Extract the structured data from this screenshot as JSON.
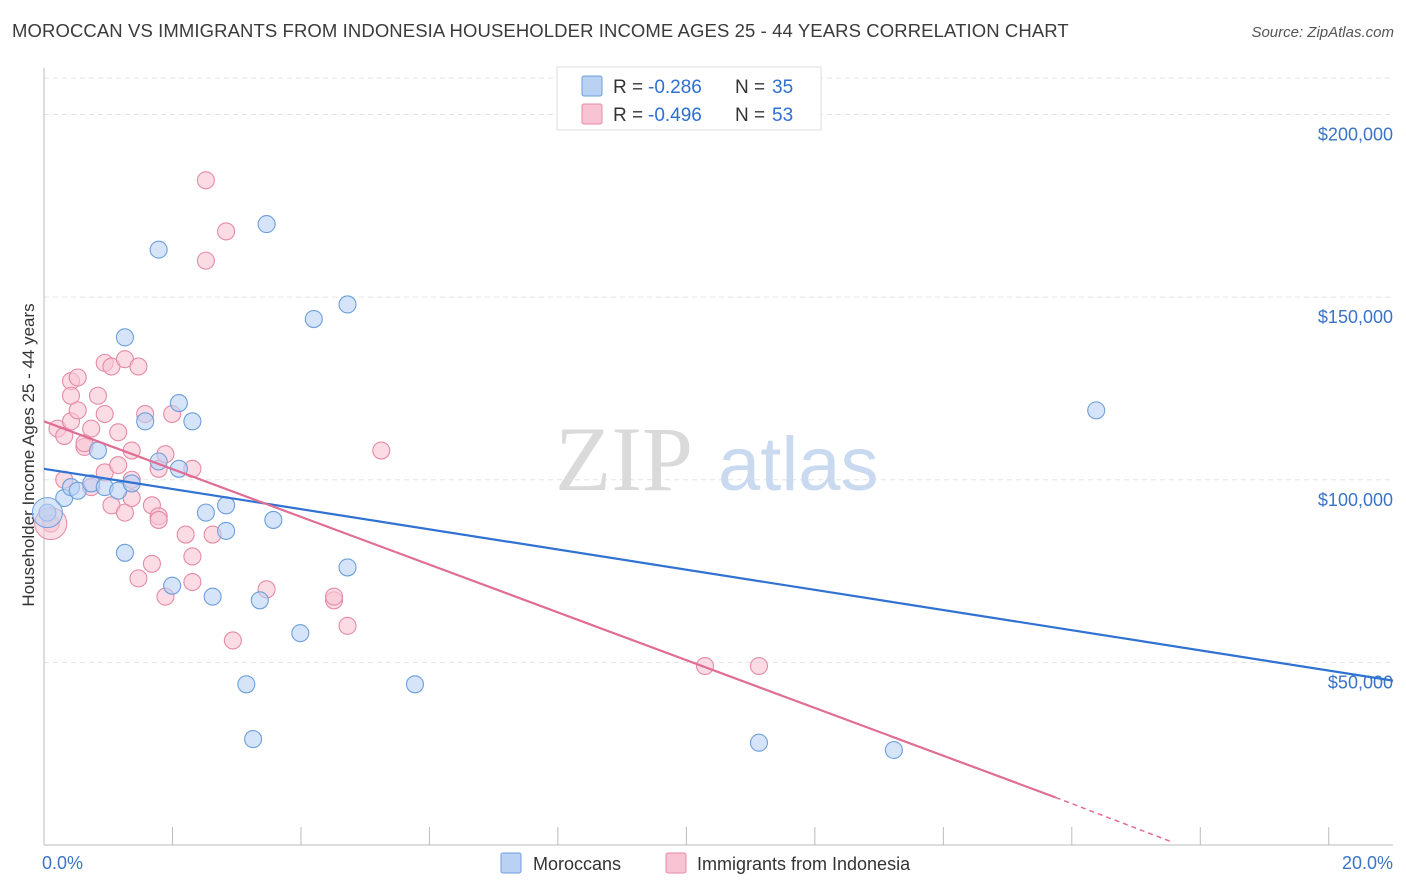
{
  "title": "MOROCCAN VS IMMIGRANTS FROM INDONESIA HOUSEHOLDER INCOME AGES 25 - 44 YEARS CORRELATION CHART",
  "source": "Source: ZipAtlas.com",
  "watermark": {
    "zip": "ZIP",
    "atlas": "atlas"
  },
  "colors": {
    "blue_fill": "#b9d2f4",
    "blue_stroke": "#6d9fdc",
    "blue_line": "#2f72d2",
    "pink_fill": "#f8c4d3",
    "pink_stroke": "#e58aa5",
    "pink_line": "#e06d96",
    "grid": "#e3e3e3",
    "tick_label": "#3b74c6"
  },
  "legend": {
    "rows": [
      {
        "r_label": "R = ",
        "r_value": "-0.286",
        "n_label": "N = ",
        "n_value": "35"
      },
      {
        "r_label": "R = ",
        "r_value": "-0.496",
        "n_label": "N = ",
        "n_value": "53"
      }
    ]
  },
  "bottom_legend": [
    "Moroccans",
    "Immigrants from Indonesia"
  ],
  "chart_data": {
    "type": "scatter",
    "title": "MOROCCAN VS IMMIGRANTS FROM INDONESIA HOUSEHOLDER INCOME AGES 25 - 44 YEARS CORRELATION CHART",
    "xlabel": "",
    "ylabel": "Householder Income Ages 25 - 44 years",
    "xlim": [
      0,
      20
    ],
    "ylim": [
      0,
      210000
    ],
    "x_tick_labels": [
      "0.0%",
      "20.0%"
    ],
    "y_ticks": [
      50000,
      100000,
      150000,
      200000
    ],
    "y_tick_labels": [
      "$50,000",
      "$100,000",
      "$150,000",
      "$200,000"
    ],
    "grid": true,
    "series": [
      {
        "name": "Moroccans",
        "r": -0.286,
        "n": 35,
        "trend": {
          "x0": 0,
          "y0": 103000,
          "x1": 20,
          "y1": 45000
        },
        "points": [
          [
            0.05,
            91000
          ],
          [
            0.3,
            95000
          ],
          [
            0.4,
            98000
          ],
          [
            0.5,
            97000
          ],
          [
            0.7,
            99000
          ],
          [
            0.9,
            98000
          ],
          [
            1.1,
            97000
          ],
          [
            0.8,
            108000
          ],
          [
            1.2,
            139000
          ],
          [
            1.5,
            116000
          ],
          [
            1.7,
            105000
          ],
          [
            2.0,
            121000
          ],
          [
            2.2,
            116000
          ],
          [
            2.0,
            103000
          ],
          [
            2.4,
            91000
          ],
          [
            2.7,
            93000
          ],
          [
            2.7,
            86000
          ],
          [
            3.4,
            89000
          ],
          [
            1.2,
            80000
          ],
          [
            1.9,
            71000
          ],
          [
            2.5,
            68000
          ],
          [
            3.2,
            67000
          ],
          [
            4.5,
            76000
          ],
          [
            3.8,
            58000
          ],
          [
            3.0,
            44000
          ],
          [
            5.5,
            44000
          ],
          [
            3.1,
            29000
          ],
          [
            1.7,
            163000
          ],
          [
            3.3,
            170000
          ],
          [
            4.0,
            144000
          ],
          [
            4.5,
            148000
          ],
          [
            10.6,
            28000
          ],
          [
            12.6,
            26000
          ],
          [
            15.6,
            119000
          ],
          [
            1.3,
            99000
          ]
        ]
      },
      {
        "name": "Immigrants from Indonesia",
        "r": -0.496,
        "n": 53,
        "trend": {
          "x0": 0,
          "y0": 116000,
          "x1": 15,
          "y1": 13000,
          "dash_x1": 16.7,
          "dash_y1": 1000
        },
        "points": [
          [
            0.1,
            88000
          ],
          [
            0.2,
            114000
          ],
          [
            0.3,
            112000
          ],
          [
            0.4,
            116000
          ],
          [
            0.3,
            100000
          ],
          [
            0.4,
            127000
          ],
          [
            0.5,
            128000
          ],
          [
            0.4,
            123000
          ],
          [
            0.5,
            119000
          ],
          [
            0.7,
            114000
          ],
          [
            0.6,
            109000
          ],
          [
            0.7,
            98000
          ],
          [
            0.9,
            102000
          ],
          [
            0.9,
            132000
          ],
          [
            1.0,
            131000
          ],
          [
            1.2,
            133000
          ],
          [
            1.4,
            131000
          ],
          [
            1.1,
            113000
          ],
          [
            1.3,
            108000
          ],
          [
            1.0,
            93000
          ],
          [
            1.2,
            91000
          ],
          [
            1.3,
            95000
          ],
          [
            1.3,
            100000
          ],
          [
            1.5,
            118000
          ],
          [
            1.7,
            103000
          ],
          [
            1.8,
            107000
          ],
          [
            1.9,
            118000
          ],
          [
            1.6,
            93000
          ],
          [
            1.7,
            90000
          ],
          [
            1.7,
            89000
          ],
          [
            2.2,
            103000
          ],
          [
            2.1,
            85000
          ],
          [
            2.2,
            79000
          ],
          [
            1.6,
            77000
          ],
          [
            1.4,
            73000
          ],
          [
            1.8,
            68000
          ],
          [
            2.2,
            72000
          ],
          [
            2.5,
            85000
          ],
          [
            2.4,
            182000
          ],
          [
            2.7,
            168000
          ],
          [
            2.4,
            160000
          ],
          [
            2.8,
            56000
          ],
          [
            3.3,
            70000
          ],
          [
            4.3,
            67000
          ],
          [
            4.3,
            68000
          ],
          [
            4.5,
            60000
          ],
          [
            5.0,
            108000
          ],
          [
            9.8,
            49000
          ],
          [
            10.6,
            49000
          ],
          [
            0.8,
            123000
          ],
          [
            0.9,
            118000
          ],
          [
            1.1,
            104000
          ],
          [
            0.6,
            110000
          ]
        ]
      }
    ]
  }
}
